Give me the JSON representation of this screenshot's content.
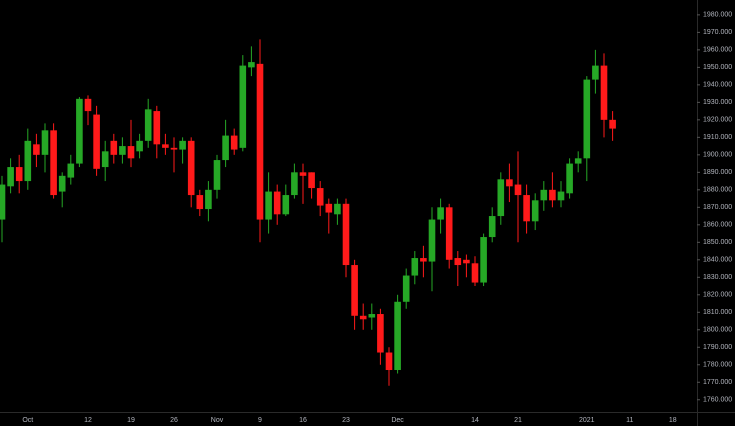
{
  "chart_data": {
    "type": "candlestick",
    "categories": [
      null,
      null,
      null,
      "Oct",
      null,
      null,
      null,
      null,
      null,
      null,
      "12",
      null,
      null,
      null,
      null,
      "19",
      null,
      null,
      null,
      null,
      "26",
      null,
      null,
      null,
      null,
      "Nov",
      null,
      null,
      null,
      null,
      "9",
      null,
      null,
      null,
      null,
      "16",
      null,
      null,
      null,
      null,
      "23",
      null,
      null,
      null,
      null,
      null,
      "Dec",
      null,
      null,
      null,
      null,
      null,
      null,
      null,
      null,
      "14",
      null,
      null,
      null,
      null,
      "21",
      null,
      null,
      null,
      null,
      null,
      null,
      null,
      "2021",
      null,
      null,
      null,
      null,
      "11",
      null,
      null,
      null,
      null,
      "18"
    ],
    "open": [
      1863,
      1882,
      1893,
      1885,
      1906,
      1900,
      1914,
      1879,
      1887,
      1895,
      1932,
      1923,
      1893,
      1908,
      1900,
      1905,
      1902,
      1908,
      1925,
      1906,
      1904,
      1903,
      1908,
      1877,
      1869,
      1880,
      1897,
      1911,
      1904,
      1950,
      1952,
      1863,
      1879,
      1866,
      1877,
      1890,
      1890,
      1881,
      1872,
      1866,
      1872,
      1837,
      1808,
      1807,
      1809,
      1787,
      1777,
      1816,
      1831,
      1841,
      1839,
      1863,
      1870,
      1841,
      1840,
      1838,
      1827,
      1853,
      1865,
      1886,
      1883,
      1877,
      1862,
      1874,
      1880,
      1874,
      1878,
      1895,
      1898,
      1943,
      1951,
      1920,
      null,
      null,
      null,
      null,
      null,
      null,
      null
    ],
    "high": [
      1888,
      1898,
      1900,
      1915,
      1912,
      1918,
      1918,
      1890,
      1900,
      1933,
      1934,
      1928,
      1908,
      1912,
      1910,
      1920,
      1912,
      1932,
      1928,
      1912,
      1910,
      1910,
      1910,
      1880,
      1885,
      1900,
      1920,
      1915,
      1957,
      1962,
      1966,
      1890,
      1883,
      1883,
      1895,
      1895,
      1890,
      1885,
      1875,
      1875,
      1875,
      1840,
      1815,
      1815,
      1812,
      1790,
      1820,
      1835,
      1845,
      1848,
      1870,
      1875,
      1872,
      1845,
      1843,
      1842,
      1855,
      1870,
      1890,
      1895,
      1902,
      1883,
      1878,
      1885,
      1890,
      1885,
      1898,
      1902,
      1945,
      1960,
      1958,
      1925,
      null,
      null,
      null,
      null,
      null,
      null,
      null
    ],
    "low": [
      1850,
      1878,
      1878,
      1880,
      1893,
      1890,
      1875,
      1870,
      1883,
      1893,
      1917,
      1888,
      1885,
      1895,
      1895,
      1893,
      1898,
      1904,
      1898,
      1900,
      1890,
      1895,
      1870,
      1865,
      1862,
      1875,
      1893,
      1900,
      1902,
      1945,
      1850,
      1855,
      1860,
      1865,
      1875,
      1872,
      1875,
      1865,
      1855,
      1860,
      1830,
      1800,
      1800,
      1800,
      1780,
      1768,
      1775,
      1812,
      1826,
      1830,
      1822,
      1855,
      1835,
      1825,
      1830,
      1825,
      1825,
      1850,
      1860,
      1873,
      1850,
      1855,
      1857,
      1868,
      1870,
      1870,
      1875,
      1890,
      1885,
      1935,
      1910,
      1908,
      null,
      null,
      null,
      null,
      null,
      null,
      null
    ],
    "close": [
      1883,
      1893,
      1885,
      1908,
      1900,
      1914,
      1877,
      1888,
      1895,
      1932,
      1925,
      1892,
      1902,
      1900,
      1905,
      1898,
      1908,
      1926,
      1906,
      1904,
      1903,
      1908,
      1877,
      1869,
      1880,
      1897,
      1911,
      1903,
      1951,
      1953,
      1863,
      1879,
      1866,
      1877,
      1890,
      1888,
      1881,
      1871,
      1867,
      1872,
      1837,
      1808,
      1806,
      1809,
      1787,
      1777,
      1816,
      1831,
      1841,
      1839,
      1863,
      1870,
      1840,
      1837,
      1838,
      1827,
      1853,
      1865,
      1886,
      1882,
      1877,
      1862,
      1874,
      1880,
      1874,
      1879,
      1895,
      1898,
      1943,
      1951,
      1920,
      1915,
      null,
      null,
      null,
      null,
      null,
      null,
      null
    ],
    "up_color": "#26a826",
    "down_color": "#ff1a1a",
    "ylim": [
      1753,
      1988.5
    ],
    "yticks": [
      {
        "value": 1760,
        "label": "1760.000"
      },
      {
        "value": 1770,
        "label": "1770.000"
      },
      {
        "value": 1780,
        "label": "1780.000"
      },
      {
        "value": 1790,
        "label": "1790.000"
      },
      {
        "value": 1800,
        "label": "1800.000"
      },
      {
        "value": 1810,
        "label": "1810.000"
      },
      {
        "value": 1820,
        "label": "1820.000"
      },
      {
        "value": 1830,
        "label": "1830.000"
      },
      {
        "value": 1840,
        "label": "1840.000"
      },
      {
        "value": 1850,
        "label": "1850.000"
      },
      {
        "value": 1860,
        "label": "1860.000"
      },
      {
        "value": 1870,
        "label": "1870.000"
      },
      {
        "value": 1880,
        "label": "1880.000"
      },
      {
        "value": 1890,
        "label": "1890.000"
      },
      {
        "value": 1900,
        "label": "1900.000"
      },
      {
        "value": 1910,
        "label": "1910.000"
      },
      {
        "value": 1920,
        "label": "1920.000"
      },
      {
        "value": 1930,
        "label": "1930.000"
      },
      {
        "value": 1940,
        "label": "1940.000"
      },
      {
        "value": 1950,
        "label": "1950.000"
      },
      {
        "value": 1960,
        "label": "1960.000"
      },
      {
        "value": 1970,
        "label": "1970.000"
      },
      {
        "value": 1980,
        "label": "1980.000"
      }
    ]
  }
}
